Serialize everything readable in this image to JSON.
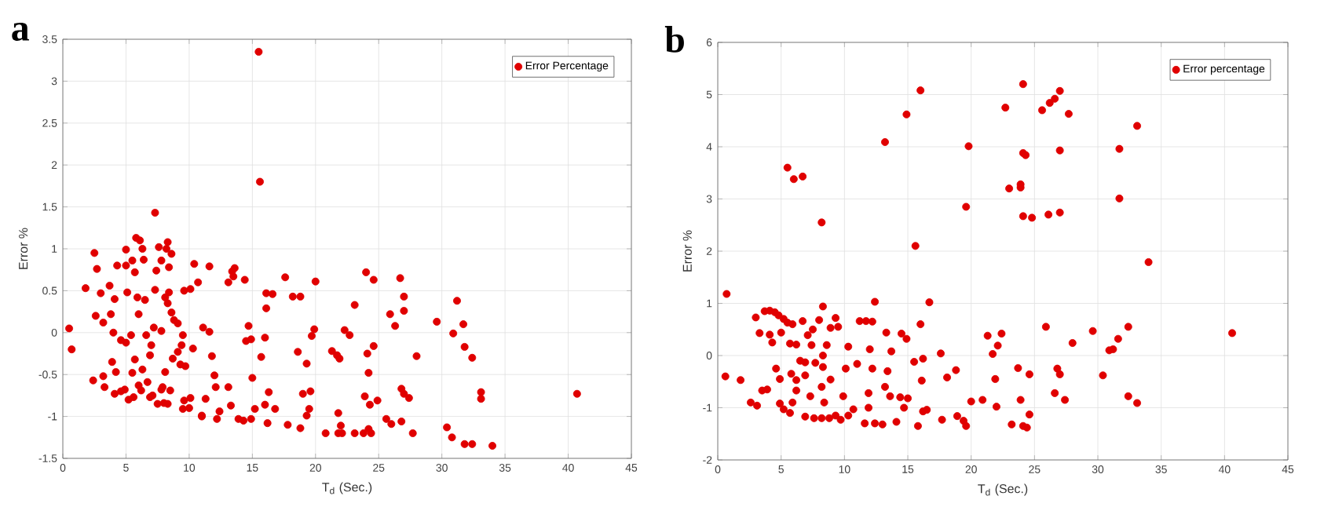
{
  "chart_data": [
    {
      "type": "scatter",
      "title": "a",
      "xlabel": "T$_{d}$ (Sec.)",
      "ylabel": "Error %",
      "xlim": [
        0,
        45
      ],
      "xticks": [
        0,
        5,
        10,
        15,
        20,
        25,
        30,
        35,
        40,
        45
      ],
      "ylim": [
        -1.5,
        3.5
      ],
      "yticks": [
        -1.5,
        -1,
        -0.5,
        0,
        0.5,
        1,
        1.5,
        2,
        2.5,
        3,
        3.5
      ],
      "grid": true,
      "legend": "top right",
      "marker": "circle",
      "series": [
        {
          "name": "Error Percentage",
          "color": "#e00000",
          "x": [
            15.5,
            15.6,
            7.3,
            0.5,
            0.7,
            1.8,
            2.5,
            2.7,
            2.6,
            3.0,
            3.2,
            2.4,
            3.2,
            3.3,
            3.7,
            3.8,
            4.1,
            4.0,
            3.9,
            4.2,
            4.1,
            4.3,
            5.0,
            5.0,
            5.1,
            4.6,
            5.0,
            5.4,
            5.5,
            5.7,
            4.9,
            5.2,
            5.5,
            5.7,
            5.9,
            6.0,
            5.8,
            6.1,
            6.4,
            6.3,
            6.5,
            6.6,
            6.9,
            7.0,
            6.3,
            6.2,
            6.7,
            7.1,
            7.5,
            7.3,
            7.4,
            7.6,
            7.8,
            8.3,
            8.2,
            8.6,
            8.1,
            8.4,
            8.6,
            8.8,
            8.3,
            7.2,
            7.8,
            8.1,
            7.8,
            8.3,
            8.5,
            8.7,
            9.1,
            9.5,
            9.3,
            9.7,
            9.6,
            10.1,
            10.7,
            10.4,
            11.6,
            9.5,
            9.6,
            10.1,
            10.3,
            11.0,
            11.1,
            11.6,
            11.8,
            11.3,
            12.0,
            12.1,
            12.2,
            12.4,
            13.1,
            13.3,
            13.4,
            13.6,
            13.1,
            13.5,
            14.4,
            14.7,
            14.5,
            14.9,
            15.0,
            13.9,
            14.3,
            14.9,
            15.2,
            16.1,
            16.6,
            16.1,
            16.0,
            15.7,
            16.3,
            16.0,
            16.2,
            16.8,
            17.6,
            18.2,
            18.8,
            18.6,
            17.8,
            18.8,
            19.3,
            19.0,
            19.6,
            19.3,
            19.5,
            20.0,
            19.9,
            19.7,
            20.8,
            21.3,
            21.7,
            21.9,
            21.8,
            22.0,
            21.8,
            22.1,
            22.3,
            22.7,
            23.1,
            23.1,
            24.0,
            24.6,
            24.1,
            24.6,
            24.2,
            23.9,
            24.3,
            24.9,
            23.8,
            24.2,
            24.4,
            25.6,
            26.0,
            25.9,
            26.3,
            26.8,
            26.7,
            27.0,
            27.0,
            26.8,
            27.0,
            27.4,
            27.7,
            28.0,
            29.6,
            30.9,
            31.2,
            31.7,
            31.8,
            32.4,
            30.4,
            30.8,
            31.8,
            32.4,
            33.1,
            33.1,
            34.0,
            40.7,
            4.6,
            5.6,
            6.9,
            6.0,
            8.0,
            8.4,
            7.9,
            9.1,
            9.4,
            11.0,
            10.0
          ],
          "values": [
            3.35,
            1.8,
            1.43,
            0.05,
            -0.2,
            0.53,
            0.95,
            0.76,
            0.2,
            0.47,
            0.12,
            -0.57,
            -0.52,
            -0.65,
            0.56,
            0.22,
            0.4,
            0.0,
            -0.35,
            -0.47,
            -0.73,
            0.8,
            0.99,
            0.8,
            0.48,
            -0.09,
            -0.12,
            -0.03,
            -0.48,
            -0.32,
            -0.68,
            -0.8,
            0.86,
            0.72,
            0.42,
            0.22,
            1.13,
            1.1,
            0.87,
            1.0,
            0.39,
            -0.03,
            -0.27,
            -0.15,
            -0.44,
            -0.69,
            -0.59,
            -0.75,
            -0.85,
            0.51,
            0.74,
            1.02,
            0.86,
            1.08,
            1.0,
            0.94,
            0.42,
            0.48,
            0.24,
            0.15,
            0.35,
            0.06,
            0.02,
            -0.47,
            -0.68,
            -0.85,
            -0.69,
            -0.31,
            -0.23,
            -0.03,
            -0.38,
            -0.4,
            0.5,
            0.52,
            0.6,
            0.82,
            0.79,
            -0.91,
            -0.81,
            -0.78,
            -0.19,
            -0.99,
            0.06,
            0.01,
            -0.28,
            -0.79,
            -0.51,
            -0.65,
            -1.03,
            -0.94,
            -0.65,
            -0.87,
            0.73,
            0.77,
            0.6,
            0.67,
            0.63,
            0.08,
            -0.1,
            -0.08,
            -0.54,
            -1.03,
            -1.05,
            -1.03,
            -0.91,
            0.47,
            0.46,
            0.29,
            -0.06,
            -0.29,
            -0.71,
            -0.86,
            -1.08,
            -0.91,
            0.66,
            0.43,
            0.43,
            -0.23,
            -1.1,
            -1.14,
            -0.37,
            -0.73,
            -0.7,
            -0.99,
            -0.91,
            0.61,
            0.04,
            -0.04,
            -1.2,
            -0.22,
            -0.27,
            -0.31,
            -0.96,
            -1.11,
            -1.2,
            -1.2,
            0.03,
            -0.03,
            0.33,
            -1.2,
            0.72,
            0.63,
            -0.25,
            -0.16,
            -0.48,
            -0.76,
            -0.86,
            -0.81,
            -1.2,
            -1.15,
            -1.2,
            -1.03,
            -1.09,
            0.22,
            0.08,
            -1.06,
            0.65,
            0.43,
            0.26,
            -0.67,
            -0.73,
            -0.78,
            -1.2,
            -0.28,
            0.13,
            -0.01,
            0.38,
            0.1,
            -0.17,
            -0.3,
            -1.13,
            -1.25,
            -1.33,
            -1.33,
            -0.71,
            -0.79,
            -1.35,
            -0.73,
            -0.7,
            -0.77,
            -0.77,
            -0.63,
            -0.84,
            0.78,
            -0.65,
            0.11,
            -0.15,
            -1.0,
            -0.9
          ]
        }
      ]
    },
    {
      "type": "scatter",
      "title": "b",
      "xlabel": "T$_{d}$ (Sec.)",
      "ylabel": "Error %",
      "xlim": [
        0,
        45
      ],
      "xticks": [
        0,
        5,
        10,
        15,
        20,
        25,
        30,
        35,
        40,
        45
      ],
      "ylim": [
        -2,
        6
      ],
      "yticks": [
        -2,
        -1,
        0,
        1,
        2,
        3,
        4,
        5,
        6
      ],
      "grid": true,
      "legend": "top right",
      "marker": "circle",
      "series": [
        {
          "name": "Error percentage",
          "color": "#e00000",
          "x": [
            0.7,
            0.6,
            1.8,
            3.0,
            3.3,
            2.6,
            3.1,
            3.5,
            3.9,
            3.7,
            4.1,
            4.1,
            4.3,
            4.5,
            4.8,
            5.0,
            5.2,
            4.6,
            4.9,
            4.9,
            5.2,
            5.7,
            5.5,
            6.0,
            6.7,
            5.5,
            5.9,
            5.7,
            6.2,
            5.8,
            6.2,
            6.2,
            5.9,
            6.7,
            6.5,
            6.9,
            6.9,
            7.1,
            7.5,
            7.4,
            7.3,
            6.9,
            7.6,
            7.7,
            8.0,
            8.3,
            8.2,
            8.3,
            8.6,
            8.3,
            8.2,
            8.4,
            8.2,
            8.8,
            8.9,
            8.9,
            9.3,
            9.5,
            9.3,
            9.7,
            9.9,
            10.1,
            10.3,
            10.3,
            10.7,
            11.0,
            11.2,
            11.7,
            12.2,
            12.0,
            11.9,
            11.9,
            12.2,
            12.4,
            11.6,
            12.4,
            13.0,
            13.2,
            13.3,
            13.2,
            13.4,
            13.7,
            13.6,
            14.1,
            14.5,
            14.9,
            14.4,
            15.0,
            14.7,
            14.9,
            16.0,
            15.6,
            15.5,
            16.2,
            16.0,
            16.1,
            15.8,
            16.2,
            16.7,
            16.5,
            17.6,
            17.7,
            18.1,
            18.8,
            18.9,
            19.4,
            19.6,
            19.6,
            19.8,
            20.0,
            20.9,
            21.3,
            21.7,
            21.9,
            22.0,
            22.1,
            22.4,
            22.7,
            23.0,
            23.2,
            23.9,
            23.9,
            23.7,
            23.9,
            24.1,
            24.3,
            24.1,
            24.8,
            24.1,
            24.1,
            24.4,
            24.6,
            24.6,
            25.6,
            26.2,
            26.6,
            27.0,
            27.7,
            27.0,
            26.1,
            27.0,
            25.9,
            26.8,
            27.0,
            26.6,
            27.4,
            28.0,
            29.6,
            30.4,
            30.9,
            31.2,
            31.6,
            31.7,
            31.7,
            32.4,
            32.4,
            33.1,
            33.1,
            34.0,
            40.6
          ],
          "values": [
            1.18,
            -0.4,
            -0.47,
            0.73,
            0.43,
            -0.9,
            -0.96,
            -0.67,
            -0.65,
            0.85,
            0.86,
            0.4,
            0.25,
            0.83,
            0.77,
            0.44,
            0.7,
            -0.25,
            -0.45,
            -0.92,
            -1.03,
            -1.1,
            3.6,
            3.38,
            3.43,
            0.63,
            0.6,
            0.23,
            0.21,
            -0.35,
            -0.47,
            -0.67,
            -0.9,
            0.66,
            -0.1,
            -0.13,
            -0.38,
            0.39,
            0.5,
            0.2,
            -0.78,
            -1.17,
            -1.2,
            -0.14,
            0.68,
            0.94,
            2.55,
            0.0,
            0.2,
            -0.22,
            -0.6,
            -0.9,
            -1.2,
            -1.2,
            -0.46,
            0.53,
            0.72,
            0.55,
            -1.15,
            -1.23,
            -0.78,
            -0.25,
            0.17,
            -1.15,
            -1.03,
            -0.16,
            0.66,
            0.66,
            0.65,
            0.12,
            -0.72,
            -1.0,
            -0.25,
            1.03,
            -1.3,
            -1.3,
            -1.32,
            4.09,
            0.44,
            -0.6,
            -0.3,
            0.08,
            -0.78,
            -1.27,
            0.42,
            0.32,
            -0.8,
            -0.82,
            -1.0,
            4.62,
            5.08,
            2.1,
            -0.12,
            -0.06,
            0.6,
            -0.48,
            -1.35,
            -1.07,
            1.02,
            -1.04,
            0.04,
            -1.23,
            -0.42,
            -0.28,
            -1.16,
            -1.25,
            -1.35,
            2.85,
            4.01,
            -0.88,
            -0.85,
            0.38,
            0.03,
            -0.45,
            -0.98,
            0.19,
            0.42,
            4.75,
            3.2,
            -1.32,
            3.28,
            3.22,
            -0.24,
            -0.85,
            3.88,
            3.84,
            2.67,
            2.64,
            5.2,
            -1.35,
            -1.38,
            -0.36,
            -1.13,
            4.7,
            4.84,
            4.92,
            5.07,
            4.63,
            3.93,
            2.7,
            2.74,
            0.55,
            -0.25,
            -0.36,
            -0.72,
            -0.85,
            0.24,
            0.47,
            -0.38,
            0.1,
            0.12,
            0.32,
            3.96,
            3.01,
            0.55,
            -0.78,
            -0.91,
            4.4,
            1.79,
            0.43
          ]
        }
      ]
    }
  ]
}
